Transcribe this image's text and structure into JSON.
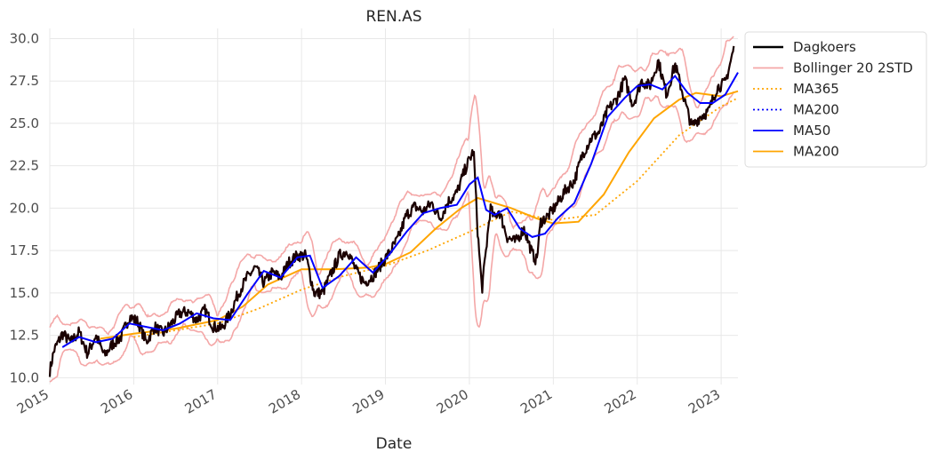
{
  "chart_data": {
    "type": "line",
    "title": "REN.AS",
    "xlabel": "Date",
    "ylabel": "",
    "xlim": [
      2015.0,
      2023.2
    ],
    "ylim": [
      9.6,
      30.6
    ],
    "xticks": [
      2015,
      2016,
      2017,
      2018,
      2019,
      2020,
      2021,
      2022,
      2023
    ],
    "xtick_labels": [
      "2015",
      "2016",
      "2017",
      "2018",
      "2019",
      "2020",
      "2021",
      "2022",
      "2023"
    ],
    "yticks": [
      10.0,
      12.5,
      15.0,
      17.5,
      20.0,
      22.5,
      25.0,
      27.5,
      30.0
    ],
    "ytick_labels": [
      "10.0",
      "12.5",
      "15.0",
      "17.5",
      "20.0",
      "22.5",
      "25.0",
      "27.5",
      "30.0"
    ],
    "grid": true,
    "legend_position": "outside-top-right",
    "series": [
      {
        "name": "Dagkoers",
        "color": "#000000",
        "style": "solid",
        "x": [
          2015.0,
          2015.05,
          2015.15,
          2015.25,
          2015.35,
          2015.45,
          2015.55,
          2015.65,
          2015.75,
          2015.85,
          2015.95,
          2016.05,
          2016.15,
          2016.25,
          2016.35,
          2016.45,
          2016.55,
          2016.65,
          2016.75,
          2016.85,
          2016.95,
          2017.05,
          2017.15,
          2017.25,
          2017.35,
          2017.45,
          2017.55,
          2017.65,
          2017.75,
          2017.85,
          2017.95,
          2018.05,
          2018.15,
          2018.25,
          2018.35,
          2018.45,
          2018.55,
          2018.65,
          2018.75,
          2018.85,
          2018.95,
          2019.05,
          2019.15,
          2019.25,
          2019.35,
          2019.45,
          2019.55,
          2019.65,
          2019.75,
          2019.85,
          2019.95,
          2020.05,
          2020.1,
          2020.15,
          2020.2,
          2020.25,
          2020.3,
          2020.35,
          2020.45,
          2020.55,
          2020.65,
          2020.75,
          2020.8,
          2020.85,
          2020.95,
          2021.05,
          2021.15,
          2021.25,
          2021.35,
          2021.45,
          2021.55,
          2021.65,
          2021.75,
          2021.85,
          2021.95,
          2022.05,
          2022.15,
          2022.25,
          2022.35,
          2022.45,
          2022.55,
          2022.65,
          2022.75,
          2022.85,
          2022.95,
          2023.05,
          2023.15
        ],
        "y": [
          10.4,
          11.6,
          12.6,
          12.1,
          12.7,
          11.4,
          12.5,
          11.3,
          12.0,
          12.4,
          13.6,
          13.3,
          12.1,
          13.0,
          12.6,
          13.2,
          13.8,
          13.9,
          13.4,
          14.0,
          13.0,
          12.9,
          13.8,
          15.0,
          15.9,
          16.5,
          15.6,
          16.2,
          15.9,
          16.8,
          17.2,
          17.2,
          15.0,
          15.0,
          16.1,
          17.2,
          17.5,
          16.3,
          15.6,
          16.0,
          16.7,
          17.4,
          18.2,
          19.6,
          20.1,
          19.8,
          20.3,
          19.4,
          20.4,
          20.9,
          22.3,
          23.4,
          18.5,
          15.2,
          17.6,
          20.0,
          19.4,
          19.9,
          18.3,
          18.0,
          18.8,
          17.3,
          16.9,
          19.2,
          19.6,
          20.3,
          21.1,
          21.6,
          23.2,
          24.1,
          24.5,
          25.8,
          26.4,
          27.6,
          26.1,
          27.5,
          27.2,
          28.7,
          26.7,
          28.5,
          26.6,
          24.8,
          25.4,
          25.7,
          27.1,
          27.4,
          29.4
        ]
      },
      {
        "name": "Bollinger 20 2STD",
        "color": "#f4a7a7",
        "style": "solid",
        "bands": true
      },
      {
        "name": "MA365",
        "color": "#ffa500",
        "style": "dotted",
        "x": [
          2016.0,
          2016.5,
          2017.0,
          2017.5,
          2018.0,
          2018.5,
          2019.0,
          2019.5,
          2020.0,
          2020.5,
          2021.0,
          2021.5,
          2022.0,
          2022.5,
          2023.0,
          2023.2
        ],
        "y": [
          12.4,
          12.8,
          13.2,
          14.1,
          15.2,
          16.0,
          16.6,
          17.5,
          18.6,
          19.8,
          19.3,
          19.6,
          21.6,
          24.3,
          26.0,
          26.5
        ]
      },
      {
        "name": "MA200",
        "color": "#0000ff",
        "style": "dotted"
      },
      {
        "name": "MA50",
        "color": "#0000ff",
        "style": "solid",
        "x": [
          2015.15,
          2015.35,
          2015.55,
          2015.75,
          2015.95,
          2016.15,
          2016.35,
          2016.55,
          2016.75,
          2016.95,
          2017.15,
          2017.35,
          2017.55,
          2017.75,
          2017.95,
          2018.1,
          2018.25,
          2018.45,
          2018.65,
          2018.85,
          2019.05,
          2019.25,
          2019.45,
          2019.65,
          2019.85,
          2020.0,
          2020.1,
          2020.2,
          2020.3,
          2020.45,
          2020.6,
          2020.75,
          2020.9,
          2021.05,
          2021.25,
          2021.45,
          2021.65,
          2021.85,
          2022.0,
          2022.15,
          2022.3,
          2022.45,
          2022.6,
          2022.75,
          2022.9,
          2023.05,
          2023.2
        ],
        "y": [
          11.8,
          12.4,
          12.1,
          12.3,
          13.2,
          13.0,
          12.8,
          13.2,
          13.8,
          13.5,
          13.4,
          14.9,
          16.3,
          15.9,
          17.1,
          17.2,
          15.3,
          16.0,
          17.1,
          16.2,
          17.3,
          18.6,
          19.7,
          20.0,
          20.2,
          21.4,
          21.8,
          19.9,
          19.6,
          20.0,
          18.8,
          18.3,
          18.5,
          19.4,
          20.3,
          22.6,
          25.4,
          26.5,
          27.2,
          27.3,
          27.0,
          27.8,
          26.8,
          26.2,
          26.2,
          26.7,
          28.0
        ]
      },
      {
        "name": "MA200",
        "color": "#ffa500",
        "style": "solid",
        "x": [
          2015.6,
          2016.0,
          2016.5,
          2017.0,
          2017.3,
          2017.6,
          2018.0,
          2018.4,
          2018.8,
          2019.0,
          2019.3,
          2019.6,
          2019.9,
          2020.1,
          2020.3,
          2020.5,
          2020.8,
          2021.0,
          2021.3,
          2021.6,
          2021.9,
          2022.2,
          2022.5,
          2022.7,
          2023.0,
          2023.2
        ],
        "y": [
          12.3,
          12.6,
          12.9,
          13.4,
          14.2,
          15.5,
          16.4,
          16.4,
          16.5,
          16.7,
          17.4,
          18.8,
          20.0,
          20.6,
          20.3,
          20.0,
          19.4,
          19.1,
          19.2,
          20.8,
          23.3,
          25.3,
          26.4,
          26.8,
          26.6,
          26.9
        ]
      }
    ]
  }
}
